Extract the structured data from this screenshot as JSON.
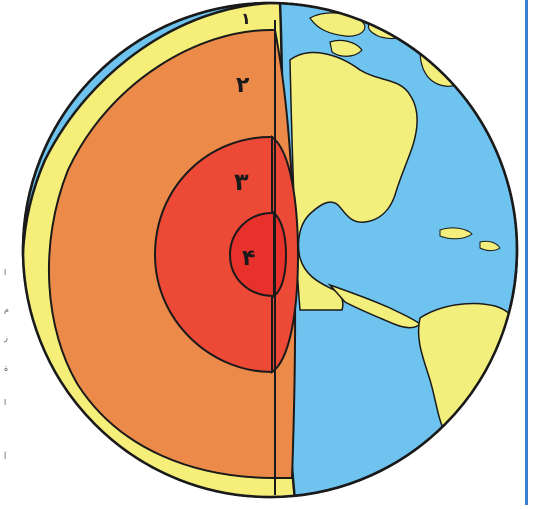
{
  "colors": {
    "crust": "#f5ef7a",
    "mantle": "#ec8a4a",
    "outer_core": "#ec4a36",
    "inner_core": "#e8312b",
    "ocean": "#6ec3ef",
    "land": "#f3ef7c",
    "outline": "#1a1a1a",
    "accent_bar": "#3a7fd0"
  },
  "labels": {
    "crust": "۱",
    "mantle": "۲",
    "outer_core": "۳",
    "inner_core": "۴"
  },
  "margin_chars": [
    "ا",
    "م",
    "ز",
    "ة",
    "ا",
    "آ"
  ]
}
